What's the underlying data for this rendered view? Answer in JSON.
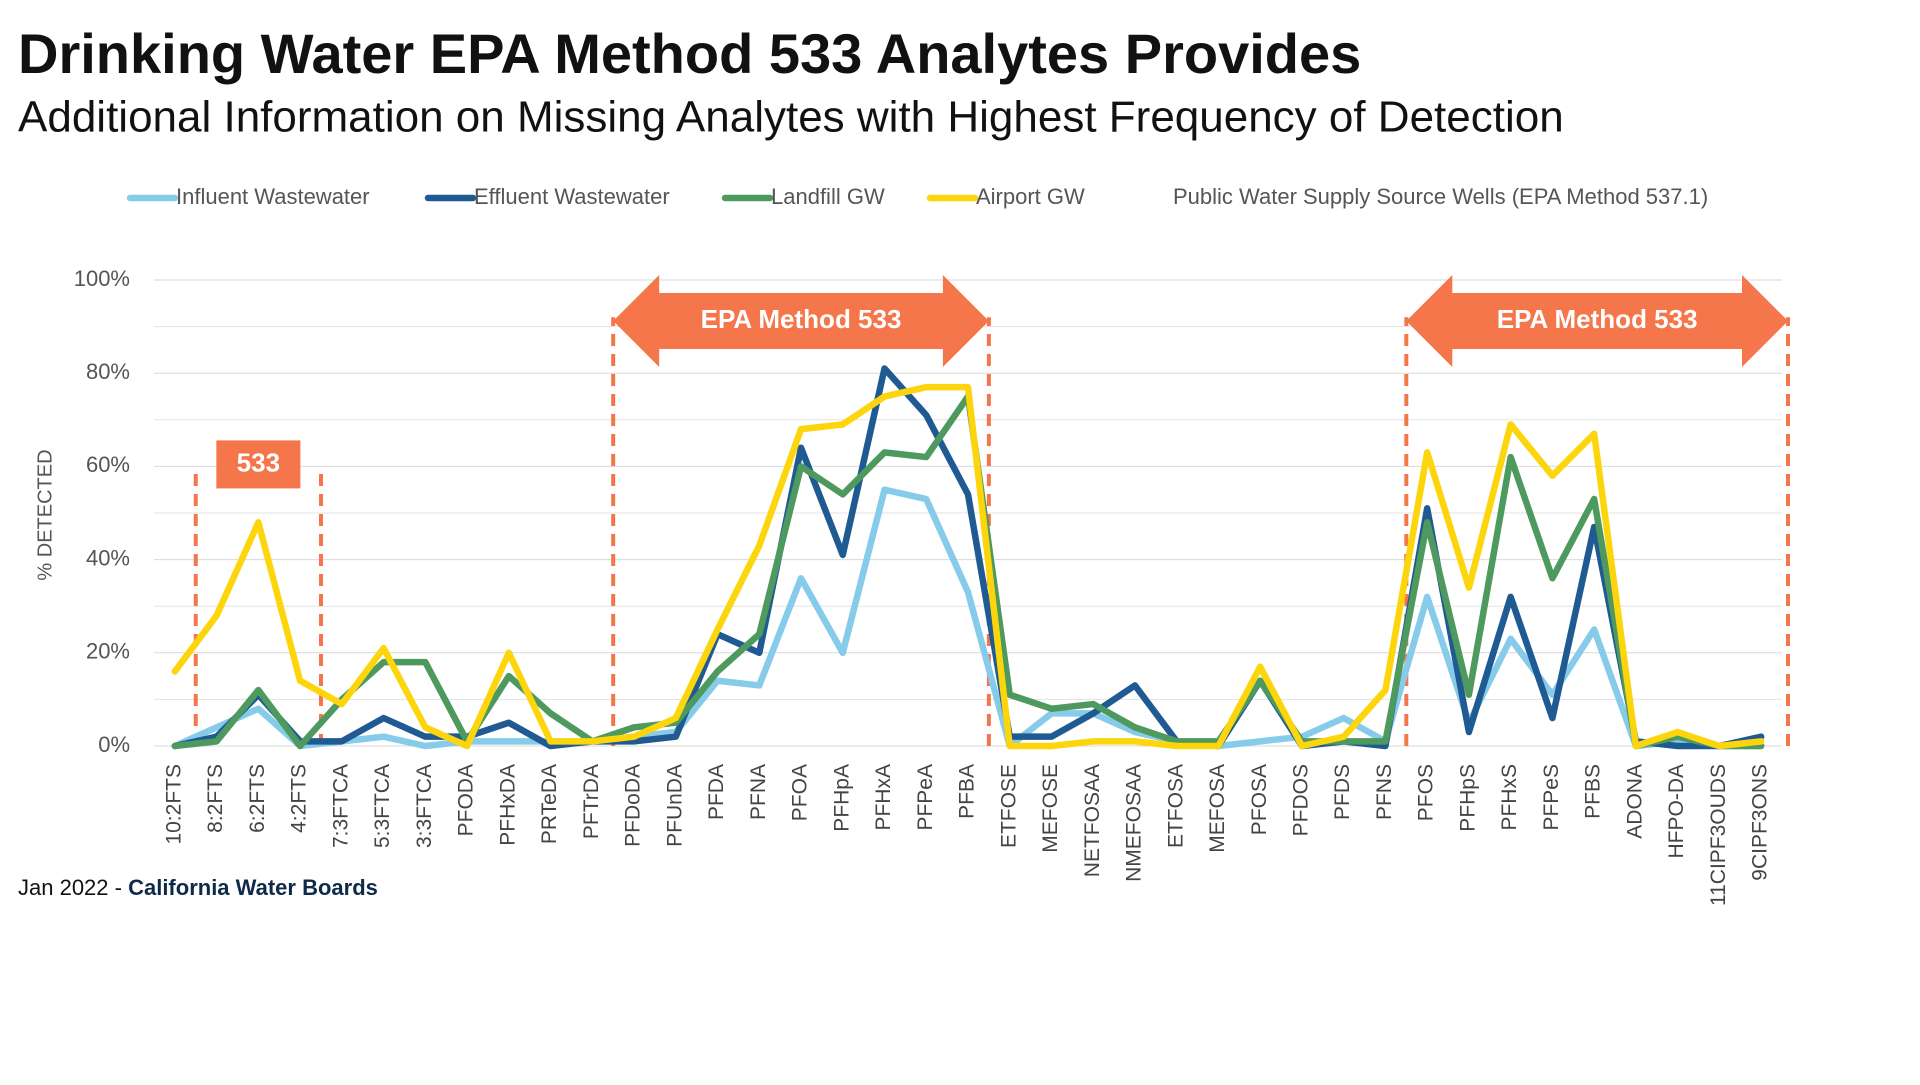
{
  "title": "Drinking Water EPA Method 533 Analytes Provides",
  "subtitle": "Additional Information on Missing Analytes with Highest Frequency of Detection",
  "footer": {
    "date": "Jan 2022 - ",
    "source": "California Water Boards"
  },
  "chart_data": {
    "type": "line",
    "y_label": "% DETECTED",
    "legend_note": "Public Water Supply Source Wells (EPA Method 537.1)",
    "annotations": [
      "533",
      "EPA Method 533",
      "EPA Method 533"
    ],
    "categories": [
      "10:2FTS",
      "8:2FTS",
      "6:2FTS",
      "4:2FTS",
      "7:3FTCA",
      "5:3FTCA",
      "3:3FTCA",
      "PFODA",
      "PFHxDA",
      "PRTeDA",
      "PFTrDA",
      "PFDoDA",
      "PFUnDA",
      "PFDA",
      "PFNA",
      "PFOA",
      "PFHpA",
      "PFHxA",
      "PFPeA",
      "PFBA",
      "ETFOSE",
      "MEFOSE",
      "NETFOSAA",
      "NMEFOSAA",
      "ETFOSA",
      "MEFOSA",
      "PFOSA",
      "PFDOS",
      "PFDS",
      "PFNS",
      "PFOS",
      "PFHpS",
      "PFHxS",
      "PFPeS",
      "PFBS",
      "ADONA",
      "HFPO-DA",
      "11CIPF3OUDS",
      "9CIPF3ONS"
    ],
    "series": [
      {
        "name": "Influent Wastewater",
        "color": "#86cbea",
        "values": [
          0,
          4,
          8,
          0,
          1,
          2,
          0,
          1,
          1,
          1,
          1,
          2,
          3,
          14,
          13,
          36,
          20,
          55,
          53,
          33,
          0,
          7,
          7,
          3,
          1,
          0,
          1,
          2,
          6,
          1,
          32,
          5,
          23,
          11,
          25,
          0,
          1,
          0,
          0
        ]
      },
      {
        "name": "Effluent Wastewater",
        "color": "#1f5a92",
        "values": [
          0,
          2,
          11,
          1,
          1,
          6,
          2,
          2,
          5,
          0,
          1,
          1,
          2,
          24,
          20,
          64,
          41,
          81,
          71,
          54,
          2,
          2,
          7,
          13,
          1,
          0,
          14,
          0,
          1,
          0,
          51,
          3,
          32,
          6,
          47,
          1,
          0,
          0,
          2
        ]
      },
      {
        "name": "Landfill GW",
        "color": "#4e9a5e",
        "values": [
          0,
          1,
          12,
          0,
          10,
          18,
          18,
          1,
          15,
          7,
          1,
          4,
          5,
          16,
          24,
          60,
          54,
          63,
          62,
          75,
          11,
          8,
          9,
          4,
          1,
          1,
          14,
          1,
          1,
          1,
          48,
          11,
          62,
          36,
          53,
          0,
          2,
          0,
          0
        ]
      },
      {
        "name": "Airport GW",
        "color": "#fdd50c",
        "values": [
          16,
          28,
          48,
          14,
          9,
          21,
          4,
          0,
          20,
          1,
          1,
          2,
          6,
          25,
          43,
          68,
          69,
          75,
          77,
          77,
          0,
          0,
          1,
          1,
          0,
          0,
          17,
          0,
          2,
          12,
          63,
          34,
          69,
          58,
          67,
          0,
          3,
          0,
          1
        ]
      }
    ],
    "ylim": [
      0,
      100
    ],
    "yticks": [
      {
        "value": 0,
        "label": "0%"
      },
      {
        "value": 20,
        "label": "20%"
      },
      {
        "value": 40,
        "label": "40%"
      },
      {
        "value": 60,
        "label": "60%"
      },
      {
        "value": 80,
        "label": "80%"
      },
      {
        "value": 100,
        "label": "100%"
      }
    ],
    "minor_yticks": [
      10,
      30,
      50,
      70,
      90
    ],
    "grid": true,
    "annotation_color": "#f4764a"
  }
}
